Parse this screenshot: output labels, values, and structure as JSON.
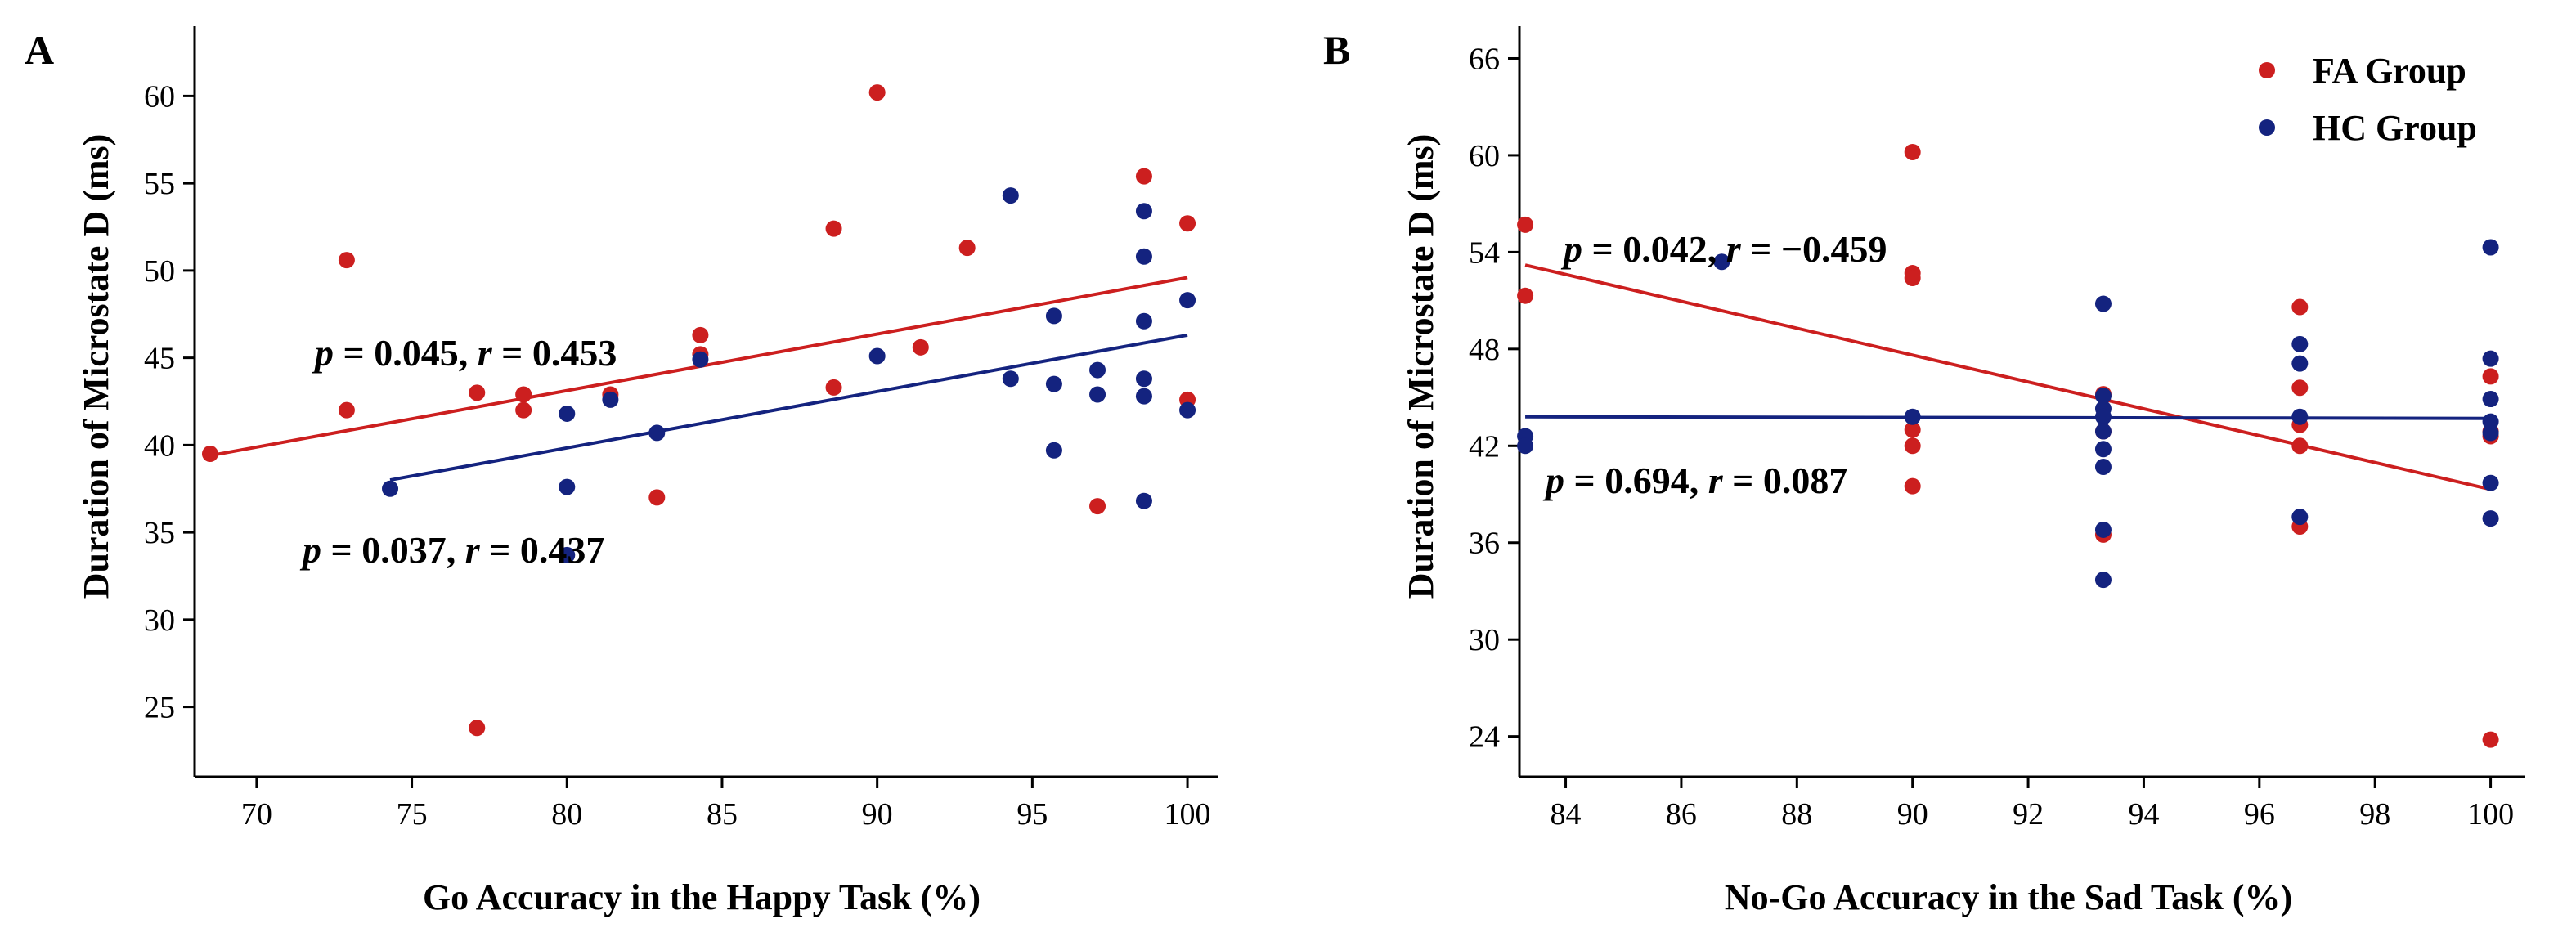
{
  "colors": {
    "fa": "#cc1f1f",
    "hc": "#14237f",
    "axis": "#000000"
  },
  "legend": [
    {
      "name": "FA  Group",
      "color_key": "fa"
    },
    {
      "name": "HC Group",
      "color_key": "hc"
    }
  ],
  "chart_data": [
    {
      "type": "scatter",
      "panel": "A",
      "xlabel": "Go Accuracy in the Happy Task  (%)",
      "ylabel": "Duration of Microstate D  (ms)",
      "xlim": [
        68,
        101
      ],
      "ylim": [
        21,
        64
      ],
      "xticks": [
        70,
        75,
        80,
        85,
        90,
        95,
        100
      ],
      "yticks": [
        25,
        30,
        35,
        40,
        45,
        50,
        55,
        60
      ],
      "series": [
        {
          "name": "FA Group",
          "color_key": "fa",
          "points": [
            [
              68.5,
              39.5
            ],
            [
              72.9,
              50.6
            ],
            [
              72.9,
              42.0
            ],
            [
              77.1,
              43.0
            ],
            [
              77.1,
              23.8
            ],
            [
              78.6,
              42.9
            ],
            [
              78.6,
              42.0
            ],
            [
              81.4,
              42.9
            ],
            [
              82.9,
              37.0
            ],
            [
              84.3,
              46.3
            ],
            [
              84.3,
              45.2
            ],
            [
              88.6,
              52.4
            ],
            [
              88.6,
              43.3
            ],
            [
              90.0,
              60.2
            ],
            [
              91.4,
              45.6
            ],
            [
              92.9,
              51.3
            ],
            [
              97.1,
              36.5
            ],
            [
              98.6,
              55.4
            ],
            [
              100.0,
              52.7
            ],
            [
              100.0,
              42.6
            ]
          ]
        },
        {
          "name": "HC Group",
          "color_key": "hc",
          "points": [
            [
              74.3,
              37.5
            ],
            [
              80.0,
              41.8
            ],
            [
              80.0,
              37.6
            ],
            [
              80.0,
              33.7
            ],
            [
              81.4,
              42.6
            ],
            [
              82.9,
              40.7
            ],
            [
              84.3,
              44.9
            ],
            [
              90.0,
              45.1
            ],
            [
              94.3,
              54.3
            ],
            [
              94.3,
              43.8
            ],
            [
              95.7,
              47.4
            ],
            [
              95.7,
              43.5
            ],
            [
              95.7,
              39.7
            ],
            [
              97.1,
              44.3
            ],
            [
              97.1,
              42.9
            ],
            [
              98.6,
              53.4
            ],
            [
              98.6,
              50.8
            ],
            [
              98.6,
              47.1
            ],
            [
              98.6,
              43.8
            ],
            [
              98.6,
              42.8
            ],
            [
              98.6,
              36.8
            ],
            [
              100.0,
              48.3
            ],
            [
              100.0,
              42.0
            ]
          ]
        }
      ],
      "fits": [
        {
          "series": "FA Group",
          "color_key": "fa",
          "x": [
            68.5,
            100.0
          ],
          "y": [
            39.4,
            49.6
          ]
        },
        {
          "series": "HC Group",
          "color_key": "hc",
          "x": [
            74.3,
            100.0
          ],
          "y": [
            38.0,
            46.3
          ]
        }
      ],
      "annotations": [
        {
          "color_key": "fa",
          "p_label": "p",
          "p_eq": " = 0.045, ",
          "r_label": "r",
          "r_eq": " = 0.453"
        },
        {
          "color_key": "hc",
          "p_label": "p",
          "p_eq": " = 0.037, ",
          "r_label": "r",
          "r_eq": " = 0.437"
        }
      ]
    },
    {
      "type": "scatter",
      "panel": "B",
      "xlabel": "No-Go Accuracy in the Sad Task (%)",
      "ylabel": "Duration of  Microstate D (ms)",
      "xlim": [
        83.2,
        100.6
      ],
      "ylim": [
        21.5,
        68
      ],
      "xticks": [
        84,
        86,
        88,
        90,
        92,
        94,
        96,
        98,
        100
      ],
      "yticks": [
        24,
        30,
        36,
        42,
        48,
        54,
        60,
        66
      ],
      "series": [
        {
          "name": "FA Group",
          "color_key": "fa",
          "points": [
            [
              83.3,
              55.7
            ],
            [
              83.3,
              51.3
            ],
            [
              90.0,
              60.2
            ],
            [
              90.0,
              52.7
            ],
            [
              90.0,
              52.4
            ],
            [
              90.0,
              43.0
            ],
            [
              90.0,
              42.0
            ],
            [
              90.0,
              39.5
            ],
            [
              93.3,
              45.2
            ],
            [
              93.3,
              42.9
            ],
            [
              93.3,
              36.5
            ],
            [
              96.7,
              50.6
            ],
            [
              96.7,
              45.6
            ],
            [
              96.7,
              43.3
            ],
            [
              96.7,
              42.0
            ],
            [
              96.7,
              37.0
            ],
            [
              100.0,
              46.3
            ],
            [
              100.0,
              42.9
            ],
            [
              100.0,
              42.6
            ],
            [
              100.0,
              23.8
            ]
          ]
        },
        {
          "name": "HC Group",
          "color_key": "hc",
          "points": [
            [
              83.3,
              42.6
            ],
            [
              83.3,
              42.0
            ],
            [
              86.7,
              53.4
            ],
            [
              90.0,
              43.8
            ],
            [
              93.3,
              50.8
            ],
            [
              93.3,
              45.1
            ],
            [
              93.3,
              44.3
            ],
            [
              93.3,
              43.8
            ],
            [
              93.3,
              42.9
            ],
            [
              93.3,
              41.8
            ],
            [
              93.3,
              40.7
            ],
            [
              93.3,
              36.8
            ],
            [
              93.3,
              33.7
            ],
            [
              96.7,
              48.3
            ],
            [
              96.7,
              47.1
            ],
            [
              96.7,
              43.8
            ],
            [
              96.7,
              37.6
            ],
            [
              100.0,
              54.3
            ],
            [
              100.0,
              47.4
            ],
            [
              100.0,
              44.9
            ],
            [
              100.0,
              43.5
            ],
            [
              100.0,
              42.8
            ],
            [
              100.0,
              39.7
            ],
            [
              100.0,
              37.5
            ]
          ]
        }
      ],
      "fits": [
        {
          "series": "FA Group",
          "color_key": "fa",
          "x": [
            83.3,
            100.0
          ],
          "y": [
            53.2,
            39.3
          ]
        },
        {
          "series": "HC Group",
          "color_key": "hc",
          "x": [
            83.3,
            100.0
          ],
          "y": [
            43.8,
            43.7
          ]
        }
      ],
      "annotations": [
        {
          "color_key": "fa",
          "p_label": "p",
          "p_eq": " = 0.042, ",
          "r_label": "r",
          "r_eq": " = −0.459"
        },
        {
          "color_key": "hc",
          "p_label": "p",
          "p_eq": " = 0.694, ",
          "r_label": "r",
          "r_eq": " = 0.087"
        }
      ]
    }
  ]
}
